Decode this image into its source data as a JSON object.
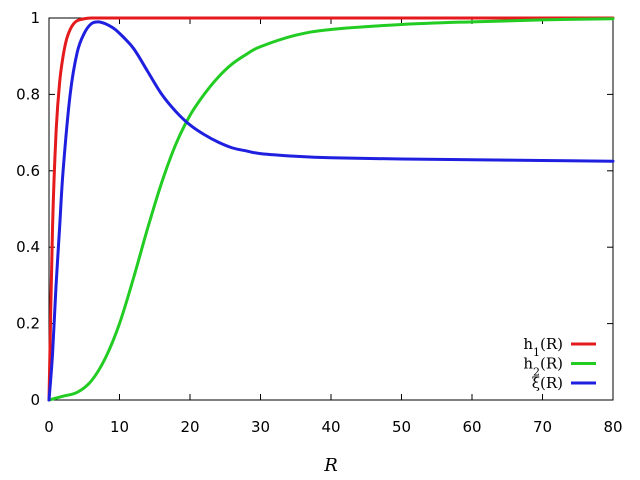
{
  "chart_data": {
    "type": "line",
    "title": "",
    "xlabel": "R",
    "ylabel": "",
    "xlim": [
      0,
      80
    ],
    "ylim": [
      0,
      1
    ],
    "x_ticks": [
      0,
      10,
      20,
      30,
      40,
      50,
      60,
      70,
      80
    ],
    "y_ticks": [
      0,
      0.2,
      0.4,
      0.6,
      0.8,
      1
    ],
    "y_tick_labels": [
      "0",
      "0.2",
      "0.4",
      "0.6",
      "0.8",
      "1"
    ],
    "grid": false,
    "legend_position": "bottom-right",
    "series": [
      {
        "name": "h",
        "subscript": "1",
        "suffix": "(R)",
        "color": "#e41a1c",
        "x": [
          0,
          0.5,
          1,
          1.5,
          2,
          2.5,
          3,
          3.5,
          4,
          5,
          6,
          8,
          10,
          20,
          40,
          80
        ],
        "y": [
          0,
          0.45,
          0.7,
          0.83,
          0.9,
          0.945,
          0.97,
          0.985,
          0.993,
          0.998,
          1,
          1,
          1,
          1,
          1,
          1
        ]
      },
      {
        "name": "h",
        "subscript": "2",
        "suffix": "(R)",
        "color": "#22cc22",
        "x": [
          0,
          2,
          4,
          6,
          8,
          10,
          12,
          14,
          16,
          18,
          20,
          22,
          24,
          26,
          28,
          30,
          35,
          40,
          50,
          60,
          70,
          80
        ],
        "y": [
          0,
          0.01,
          0.02,
          0.05,
          0.11,
          0.2,
          0.32,
          0.45,
          0.57,
          0.67,
          0.745,
          0.8,
          0.845,
          0.88,
          0.905,
          0.925,
          0.955,
          0.97,
          0.983,
          0.99,
          0.995,
          0.998
        ]
      },
      {
        "name": "ξ",
        "subscript": "",
        "suffix": "(R)",
        "color": "#1f1fe0",
        "x": [
          0,
          0.5,
          1,
          1.5,
          2,
          3,
          4,
          5,
          6,
          7,
          8,
          9,
          10,
          12,
          14,
          16,
          18,
          20,
          22,
          24,
          26,
          28,
          30,
          35,
          40,
          50,
          60,
          70,
          80
        ],
        "y": [
          0,
          0.12,
          0.3,
          0.45,
          0.6,
          0.8,
          0.91,
          0.96,
          0.985,
          0.99,
          0.985,
          0.975,
          0.96,
          0.92,
          0.86,
          0.8,
          0.755,
          0.72,
          0.695,
          0.675,
          0.66,
          0.652,
          0.645,
          0.638,
          0.634,
          0.631,
          0.629,
          0.627,
          0.625
        ]
      }
    ]
  }
}
